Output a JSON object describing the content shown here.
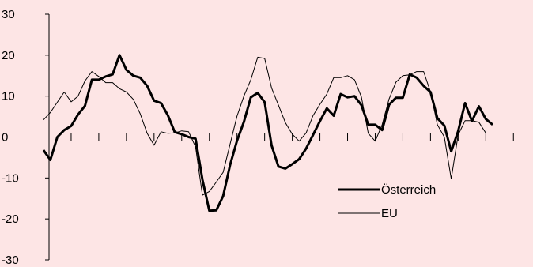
{
  "chart_data": {
    "type": "line",
    "title": "",
    "xlabel": "",
    "ylabel": "",
    "ylim": [
      -30,
      30
    ],
    "yticks": [
      -30,
      -20,
      -10,
      0,
      10,
      20,
      30
    ],
    "grid": false,
    "legend_position": "lower-right",
    "x_count": 70,
    "x_tick_every": 4,
    "series": [
      {
        "name": "Österreich",
        "color": "#000000",
        "line_weight": "bold",
        "values": [
          -3.2,
          -5.6,
          0,
          1.7,
          2.7,
          5.5,
          7.6,
          14,
          14,
          14.8,
          15.3,
          20,
          16.4,
          15,
          14.5,
          12.5,
          8.9,
          8.3,
          5.3,
          1.2,
          0.7,
          0,
          -0.4,
          -10.4,
          -18,
          -17.9,
          -14.4,
          -6.8,
          -0.9,
          3.7,
          9.7,
          10.8,
          8.5,
          -2,
          -7.2,
          -7.7,
          -6.6,
          -5.4,
          -2.8,
          0.5,
          3.9,
          7,
          5.2,
          10.5,
          9.7,
          10,
          7.8,
          3,
          3,
          1.7,
          7.9,
          9.6,
          9.6,
          15.3,
          14.5,
          12.5,
          11,
          4.6,
          2.8,
          -3.5,
          1.4,
          8.3,
          3.9,
          7.5,
          4.4,
          3
        ]
      },
      {
        "name": "EU",
        "color": "#000000",
        "line_weight": "thin",
        "values": [
          4.2,
          6,
          8.5,
          11,
          8.6,
          10,
          13.7,
          16,
          14.8,
          13.3,
          13.3,
          11.8,
          11,
          9.2,
          5.7,
          0.9,
          -2,
          1.3,
          0.9,
          1,
          1.5,
          1.3,
          -2.4,
          -14.2,
          -13.3,
          -11,
          -8.6,
          -1.7,
          5.1,
          10,
          14,
          19.5,
          19.2,
          12,
          7.8,
          3.5,
          0.7,
          -1,
          1,
          5.2,
          8,
          10.5,
          14.5,
          14.5,
          15,
          14,
          9.8,
          0.9,
          -1,
          3,
          9.3,
          13.4,
          15,
          15.2,
          16,
          16,
          11,
          3,
          0,
          -10.2,
          0.5,
          4,
          4,
          3.6,
          1
        ]
      }
    ]
  }
}
